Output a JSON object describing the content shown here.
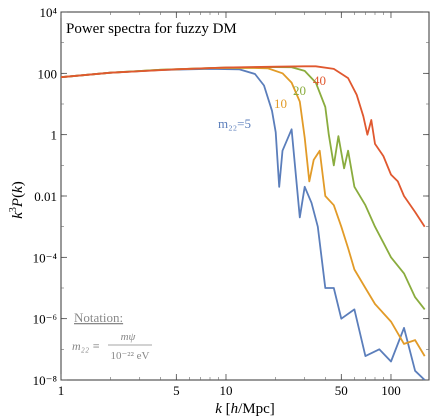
{
  "chart_data": {
    "type": "line",
    "title": "Power spectra for fuzzy DM",
    "xlabel": "k [h/Mpc]",
    "ylabel": "k³P(k)",
    "x_scale": "log",
    "y_scale": "log",
    "xlim": [
      1,
      170
    ],
    "ylim": [
      1e-08,
      10000.0
    ],
    "x_ticks": [
      {
        "value": 1,
        "label": "1"
      },
      {
        "value": 5,
        "label": "5"
      },
      {
        "value": 10,
        "label": "10"
      },
      {
        "value": 50,
        "label": "50"
      },
      {
        "value": 100,
        "label": "100"
      }
    ],
    "y_ticks": [
      {
        "value": 1e-08,
        "label": "10⁻⁸"
      },
      {
        "value": 1e-06,
        "label": "10⁻⁶"
      },
      {
        "value": 0.0001,
        "label": "10⁻⁴"
      },
      {
        "value": 0.01,
        "label": "0.01"
      },
      {
        "value": 1,
        "label": "1"
      },
      {
        "value": 100,
        "label": "100"
      },
      {
        "value": 10000.0,
        "label": "10⁴"
      }
    ],
    "annotation": {
      "heading": "Notation:",
      "lhs": "m₂₂ ≡",
      "numerator": "mψ",
      "denominator": "10⁻²² eV"
    },
    "series": [
      {
        "label": "m₂₂=5",
        "m22": 5,
        "color": "#5b7ebb",
        "points": [
          [
            1,
            75
          ],
          [
            2,
            105
          ],
          [
            4,
            128
          ],
          [
            8,
            140
          ],
          [
            12,
            135
          ],
          [
            15,
            95
          ],
          [
            17,
            40
          ],
          [
            19,
            6
          ],
          [
            20,
            1.2
          ],
          [
            21,
            0.02
          ],
          [
            22,
            0.3
          ],
          [
            25,
            1.5
          ],
          [
            28,
            0.002
          ],
          [
            30,
            0.02
          ],
          [
            33,
            0.006
          ],
          [
            36,
            0.001
          ],
          [
            40,
            1e-05
          ],
          [
            45,
            1e-05
          ],
          [
            50,
            1e-06
          ],
          [
            60,
            2e-06
          ],
          [
            70,
            6e-08
          ],
          [
            85,
            1e-07
          ],
          [
            100,
            4e-08
          ],
          [
            120,
            5e-07
          ],
          [
            140,
            2e-08
          ],
          [
            160,
            1e-08
          ]
        ]
      },
      {
        "label": "10",
        "m22": 10,
        "color": "#e29b28",
        "points": [
          [
            1,
            75
          ],
          [
            2,
            105
          ],
          [
            4,
            130
          ],
          [
            8,
            148
          ],
          [
            14,
            150
          ],
          [
            18,
            145
          ],
          [
            22,
            100
          ],
          [
            25,
            50
          ],
          [
            28,
            12
          ],
          [
            30,
            0.8
          ],
          [
            32,
            0.03
          ],
          [
            34,
            0.15
          ],
          [
            37,
            0.3
          ],
          [
            40,
            0.01
          ],
          [
            45,
            0.005
          ],
          [
            50,
            0.001
          ],
          [
            55,
            0.0002
          ],
          [
            60,
            4e-05
          ],
          [
            70,
            1e-05
          ],
          [
            80,
            3e-06
          ],
          [
            100,
            8e-07
          ],
          [
            120,
            1.5e-07
          ],
          [
            140,
            2e-07
          ],
          [
            160,
            6e-08
          ]
        ]
      },
      {
        "label": "20",
        "m22": 20,
        "color": "#8aac3e",
        "points": [
          [
            1,
            75
          ],
          [
            2,
            105
          ],
          [
            4,
            130
          ],
          [
            10,
            155
          ],
          [
            20,
            160
          ],
          [
            25,
            158
          ],
          [
            30,
            120
          ],
          [
            35,
            50
          ],
          [
            40,
            8
          ],
          [
            42,
            1
          ],
          [
            45,
            0.1
          ],
          [
            48,
            0.9
          ],
          [
            52,
            0.08
          ],
          [
            55,
            0.3
          ],
          [
            60,
            0.02
          ],
          [
            70,
            0.005
          ],
          [
            80,
            0.001
          ],
          [
            90,
            0.0003
          ],
          [
            100,
            0.0001
          ],
          [
            120,
            3e-05
          ],
          [
            140,
            5e-06
          ],
          [
            160,
            2e-06
          ]
        ]
      },
      {
        "label": "40",
        "m22": 40,
        "color": "#e0582f",
        "points": [
          [
            1,
            75
          ],
          [
            2,
            105
          ],
          [
            5,
            135
          ],
          [
            10,
            155
          ],
          [
            20,
            165
          ],
          [
            30,
            170
          ],
          [
            35,
            170
          ],
          [
            45,
            140
          ],
          [
            55,
            70
          ],
          [
            62,
            20
          ],
          [
            68,
            4
          ],
          [
            72,
            1
          ],
          [
            76,
            3
          ],
          [
            80,
            0.5
          ],
          [
            90,
            0.2
          ],
          [
            100,
            0.05
          ],
          [
            110,
            0.03
          ],
          [
            120,
            0.01
          ],
          [
            140,
            0.003
          ],
          [
            160,
            0.001
          ]
        ]
      }
    ]
  }
}
